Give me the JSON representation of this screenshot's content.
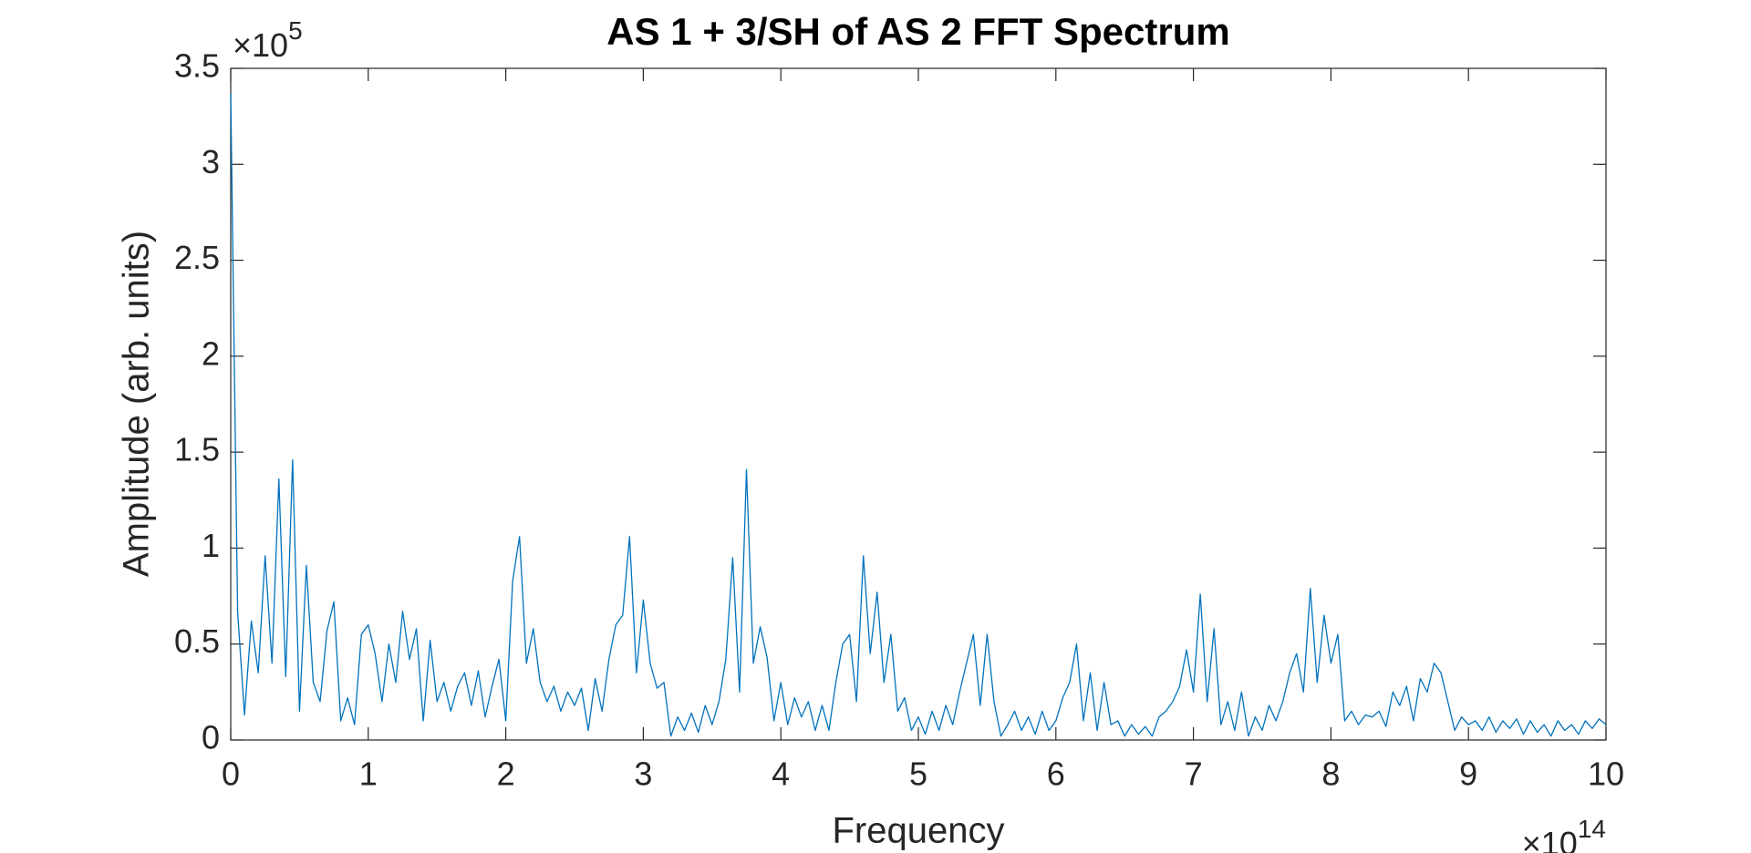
{
  "chart_data": {
    "type": "line",
    "title": "AS 1 + 3/SH of AS 2 FFT Spectrum",
    "xlabel": "Frequency",
    "ylabel": "Amplitude (arb. units)",
    "x_multiplier": {
      "base": "×10",
      "exponent": "14"
    },
    "y_multiplier": {
      "base": "×10",
      "exponent": "5"
    },
    "color": "#0072bd",
    "xlim": [
      0,
      10
    ],
    "ylim": [
      0,
      3.5
    ],
    "xticks": [
      0,
      1,
      2,
      3,
      4,
      5,
      6,
      7,
      8,
      9,
      10
    ],
    "yticks": [
      0,
      0.5,
      1,
      1.5,
      2,
      2.5,
      3,
      3.5
    ],
    "grid": false,
    "x": [
      0,
      0.05,
      0.1,
      0.15,
      0.2,
      0.25,
      0.3,
      0.35,
      0.4,
      0.45,
      0.5,
      0.55,
      0.6,
      0.65,
      0.7,
      0.75,
      0.8,
      0.85,
      0.9,
      0.95,
      1,
      1.05,
      1.1,
      1.15,
      1.2,
      1.25,
      1.3,
      1.35,
      1.4,
      1.45,
      1.5,
      1.55,
      1.6,
      1.65,
      1.7,
      1.75,
      1.8,
      1.85,
      1.9,
      1.95,
      2,
      2.05,
      2.1,
      2.15,
      2.2,
      2.25,
      2.3,
      2.35,
      2.4,
      2.45,
      2.5,
      2.55,
      2.6,
      2.65,
      2.7,
      2.75,
      2.8,
      2.85,
      2.9,
      2.95,
      3,
      3.05,
      3.1,
      3.15,
      3.2,
      3.25,
      3.3,
      3.35,
      3.4,
      3.45,
      3.5,
      3.55,
      3.6,
      3.65,
      3.7,
      3.75,
      3.8,
      3.85,
      3.9,
      3.95,
      4,
      4.05,
      4.1,
      4.15,
      4.2,
      4.25,
      4.3,
      4.35,
      4.4,
      4.45,
      4.5,
      4.55,
      4.6,
      4.65,
      4.7,
      4.75,
      4.8,
      4.85,
      4.9,
      4.95,
      5,
      5.05,
      5.1,
      5.15,
      5.2,
      5.25,
      5.3,
      5.35,
      5.4,
      5.45,
      5.5,
      5.55,
      5.6,
      5.65,
      5.7,
      5.75,
      5.8,
      5.85,
      5.9,
      5.95,
      6,
      6.05,
      6.1,
      6.15,
      6.2,
      6.25,
      6.3,
      6.35,
      6.4,
      6.45,
      6.5,
      6.55,
      6.6,
      6.65,
      6.7,
      6.75,
      6.8,
      6.85,
      6.9,
      6.95,
      7,
      7.05,
      7.1,
      7.15,
      7.2,
      7.25,
      7.3,
      7.35,
      7.4,
      7.45,
      7.5,
      7.55,
      7.6,
      7.65,
      7.7,
      7.75,
      7.8,
      7.85,
      7.9,
      7.95,
      8,
      8.05,
      8.1,
      8.15,
      8.2,
      8.25,
      8.3,
      8.35,
      8.4,
      8.45,
      8.5,
      8.55,
      8.6,
      8.65,
      8.7,
      8.75,
      8.8,
      8.85,
      8.9,
      8.95,
      9,
      9.05,
      9.1,
      9.15,
      9.2,
      9.25,
      9.3,
      9.35,
      9.4,
      9.45,
      9.5,
      9.55,
      9.6,
      9.65,
      9.7,
      9.75,
      9.8,
      9.85,
      9.9,
      9.95,
      10
    ],
    "values": [
      3.37,
      0.67,
      0.13,
      0.62,
      0.35,
      0.96,
      0.4,
      1.36,
      0.33,
      1.46,
      0.15,
      0.91,
      0.3,
      0.2,
      0.57,
      0.72,
      0.1,
      0.22,
      0.08,
      0.55,
      0.6,
      0.45,
      0.2,
      0.5,
      0.3,
      0.67,
      0.42,
      0.58,
      0.1,
      0.52,
      0.2,
      0.3,
      0.15,
      0.28,
      0.35,
      0.18,
      0.36,
      0.12,
      0.28,
      0.42,
      0.1,
      0.83,
      1.06,
      0.4,
      0.58,
      0.3,
      0.2,
      0.28,
      0.15,
      0.25,
      0.18,
      0.27,
      0.05,
      0.32,
      0.15,
      0.42,
      0.6,
      0.65,
      1.06,
      0.35,
      0.73,
      0.4,
      0.27,
      0.3,
      0.02,
      0.12,
      0.05,
      0.14,
      0.04,
      0.18,
      0.08,
      0.2,
      0.42,
      0.95,
      0.25,
      1.41,
      0.4,
      0.59,
      0.43,
      0.1,
      0.3,
      0.08,
      0.22,
      0.12,
      0.2,
      0.05,
      0.18,
      0.05,
      0.3,
      0.5,
      0.55,
      0.2,
      0.96,
      0.45,
      0.77,
      0.3,
      0.55,
      0.15,
      0.22,
      0.05,
      0.12,
      0.03,
      0.15,
      0.05,
      0.18,
      0.08,
      0.25,
      0.4,
      0.55,
      0.18,
      0.55,
      0.2,
      0.02,
      0.08,
      0.15,
      0.05,
      0.12,
      0.03,
      0.15,
      0.05,
      0.1,
      0.22,
      0.3,
      0.5,
      0.1,
      0.35,
      0.05,
      0.3,
      0.08,
      0.1,
      0.02,
      0.08,
      0.03,
      0.07,
      0.02,
      0.12,
      0.15,
      0.2,
      0.28,
      0.47,
      0.25,
      0.76,
      0.2,
      0.58,
      0.08,
      0.2,
      0.05,
      0.25,
      0.02,
      0.12,
      0.05,
      0.18,
      0.1,
      0.2,
      0.35,
      0.45,
      0.25,
      0.79,
      0.3,
      0.65,
      0.4,
      0.55,
      0.1,
      0.15,
      0.08,
      0.13,
      0.12,
      0.15,
      0.07,
      0.25,
      0.18,
      0.28,
      0.1,
      0.32,
      0.25,
      0.4,
      0.35,
      0.2,
      0.05,
      0.12,
      0.08,
      0.1,
      0.05,
      0.12,
      0.04,
      0.1,
      0.06,
      0.11,
      0.03,
      0.1,
      0.04,
      0.08,
      0.02,
      0.1,
      0.05,
      0.08,
      0.03,
      0.1,
      0.06,
      0.11,
      0.08
    ]
  }
}
